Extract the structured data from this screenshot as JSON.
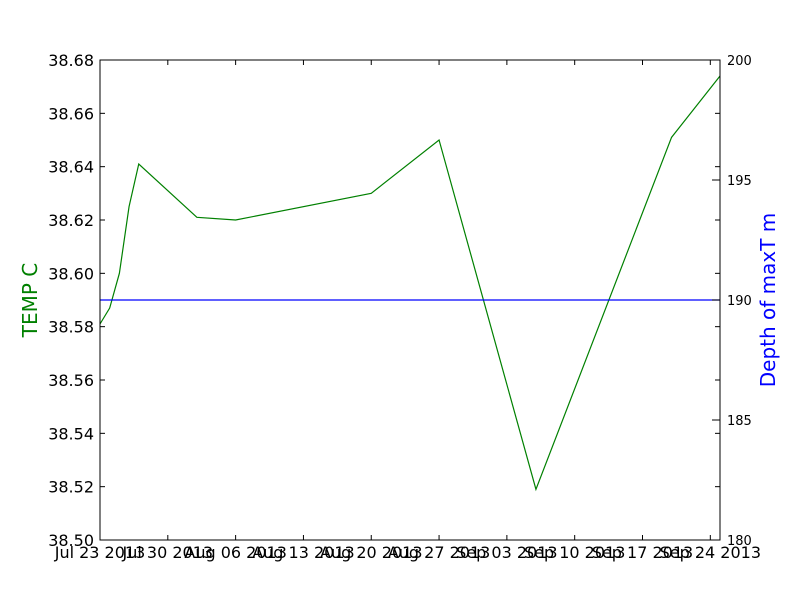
{
  "chart_data": {
    "type": "line",
    "title": "",
    "xlabel": "",
    "ylabel": "TEMP C",
    "ylabel_color": "#008000",
    "ylim": [
      38.5,
      38.68
    ],
    "y_ticks": [
      "38.50",
      "38.52",
      "38.54",
      "38.56",
      "38.58",
      "38.60",
      "38.62",
      "38.64",
      "38.66",
      "38.68"
    ],
    "y_tick_values": [
      38.5,
      38.52,
      38.54,
      38.56,
      38.58,
      38.6,
      38.62,
      38.64,
      38.66,
      38.68
    ],
    "y2label": "Depth of maxT m",
    "y2label_color": "#0000ff",
    "y2lim": [
      180,
      200
    ],
    "y2_ticks": [
      "180",
      "185",
      "190",
      "195",
      "200"
    ],
    "y2_tick_values": [
      180,
      185,
      190,
      195,
      200
    ],
    "xlim": [
      "2013-07-23",
      "2013-09-25"
    ],
    "x_ticks": [
      "Jul 23 2013",
      "Jul 30 2013",
      "Aug 06 2013",
      "Aug 13 2013",
      "Aug 20 2013",
      "Aug 27 2013",
      "Sep 03 2013",
      "Sep 10 2013",
      "Sep 17 2013",
      "Sep 24 2013"
    ],
    "x_tick_dates": [
      "2013-07-23",
      "2013-07-30",
      "2013-08-06",
      "2013-08-13",
      "2013-08-20",
      "2013-08-27",
      "2013-09-03",
      "2013-09-10",
      "2013-09-17",
      "2013-09-24"
    ],
    "grid": false,
    "series": [
      {
        "axis": "left",
        "color": "#008000",
        "x": [
          "2013-07-23",
          "2013-07-24",
          "2013-07-25",
          "2013-07-26",
          "2013-07-27",
          "2013-08-02",
          "2013-08-06",
          "2013-08-20",
          "2013-08-27",
          "2013-09-06",
          "2013-09-20",
          "2013-09-25"
        ],
        "y": [
          38.581,
          38.587,
          38.6,
          38.625,
          38.641,
          38.621,
          38.62,
          38.63,
          38.65,
          38.519,
          38.651,
          38.674
        ]
      },
      {
        "axis": "right",
        "color": "#0000ff",
        "x": [
          "2013-07-23",
          "2013-09-25"
        ],
        "y": [
          190,
          190
        ]
      }
    ]
  }
}
